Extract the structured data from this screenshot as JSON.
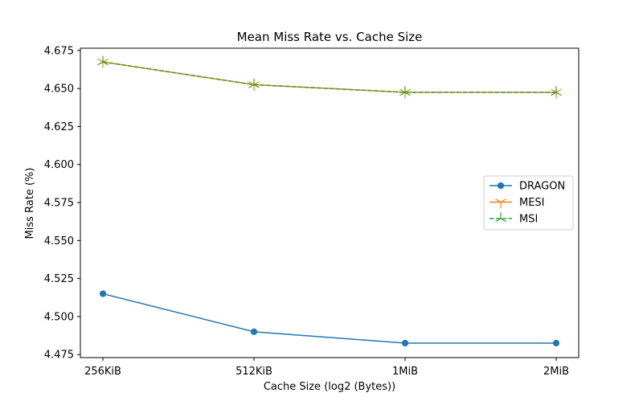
{
  "chart_data": {
    "type": "line",
    "title": "Mean Miss Rate vs. Cache Size",
    "xlabel": "Cache Size (log2 (Bytes))",
    "ylabel": "Miss Rate (%)",
    "categories": [
      "256KiB",
      "512KiB",
      "1MiB",
      "2MiB"
    ],
    "ylim": [
      4.473,
      4.6765
    ],
    "yticks": [
      "4.475",
      "4.500",
      "4.525",
      "4.550",
      "4.575",
      "4.600",
      "4.625",
      "4.650",
      "4.675"
    ],
    "grid": false,
    "legend_position": "center-right",
    "series": [
      {
        "name": "DRAGON",
        "values": [
          4.515,
          4.49,
          4.4825,
          4.4825
        ],
        "color": "#1f77b4",
        "line_style": "solid",
        "marker": "circle"
      },
      {
        "name": "MESI",
        "values": [
          4.6675,
          4.6525,
          4.6475,
          4.6475
        ],
        "color": "#ff7f0e",
        "line_style": "solid",
        "marker": "tri-down"
      },
      {
        "name": "MSI",
        "values": [
          4.6675,
          4.6525,
          4.6475,
          4.6475
        ],
        "color": "#2ca02c",
        "line_style": "dashed",
        "marker": "tri-up"
      }
    ]
  }
}
